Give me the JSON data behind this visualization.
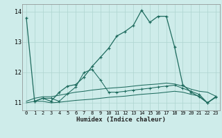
{
  "xlabel": "Humidex (Indice chaleur)",
  "bg_color": "#ceecea",
  "grid_color": "#aed4d0",
  "line_color": "#1e6b5e",
  "xlim": [
    -0.5,
    23.5
  ],
  "ylim": [
    10.75,
    14.25
  ],
  "yticks": [
    11,
    12,
    13,
    14
  ],
  "xticks": [
    0,
    1,
    2,
    3,
    4,
    5,
    6,
    7,
    8,
    9,
    10,
    11,
    12,
    13,
    14,
    15,
    16,
    17,
    18,
    19,
    20,
    21,
    22,
    23
  ],
  "line1_x": [
    0,
    1,
    2,
    3,
    4,
    5,
    6,
    7,
    8,
    9,
    10,
    11,
    12,
    13,
    14,
    15,
    16,
    17,
    18,
    19,
    20,
    21,
    22,
    23
  ],
  "line1_y": [
    13.8,
    11.05,
    11.15,
    11.05,
    11.35,
    11.55,
    11.6,
    11.85,
    12.2,
    12.5,
    12.8,
    13.2,
    13.35,
    13.55,
    14.05,
    13.65,
    13.85,
    13.85,
    12.85,
    11.6,
    11.35,
    11.2,
    11.0,
    11.2
  ],
  "line2_x": [
    0,
    1,
    2,
    3,
    4,
    5,
    6,
    7,
    8,
    9,
    10,
    11,
    12,
    13,
    14,
    15,
    16,
    17,
    18,
    19,
    20,
    21,
    22,
    23
  ],
  "line2_y": [
    11.05,
    11.15,
    11.2,
    11.2,
    11.25,
    11.3,
    11.35,
    11.38,
    11.42,
    11.45,
    11.48,
    11.5,
    11.52,
    11.55,
    11.58,
    11.6,
    11.62,
    11.65,
    11.62,
    11.55,
    11.45,
    11.38,
    11.35,
    11.22
  ],
  "line3_x": [
    0,
    1,
    2,
    3,
    4,
    5,
    6,
    7,
    8,
    9,
    10,
    11,
    12,
    13,
    14,
    15,
    16,
    17,
    18,
    19,
    20,
    21,
    22,
    23
  ],
  "line3_y": [
    11.0,
    11.05,
    11.05,
    11.0,
    11.02,
    11.05,
    11.08,
    11.1,
    11.12,
    11.15,
    11.18,
    11.2,
    11.22,
    11.25,
    11.28,
    11.3,
    11.32,
    11.35,
    11.38,
    11.35,
    11.28,
    11.22,
    11.0,
    11.18
  ],
  "line4_x": [
    1,
    2,
    3,
    4,
    5,
    6,
    7,
    8,
    9,
    10,
    11,
    12,
    13,
    14,
    15,
    16,
    17,
    18,
    19,
    20,
    21,
    22,
    23
  ],
  "line4_y": [
    11.05,
    11.15,
    11.15,
    11.05,
    11.3,
    11.52,
    12.0,
    12.1,
    11.75,
    11.35,
    11.35,
    11.38,
    11.42,
    11.45,
    11.48,
    11.52,
    11.55,
    11.58,
    11.48,
    11.38,
    11.28,
    11.0,
    11.18
  ]
}
